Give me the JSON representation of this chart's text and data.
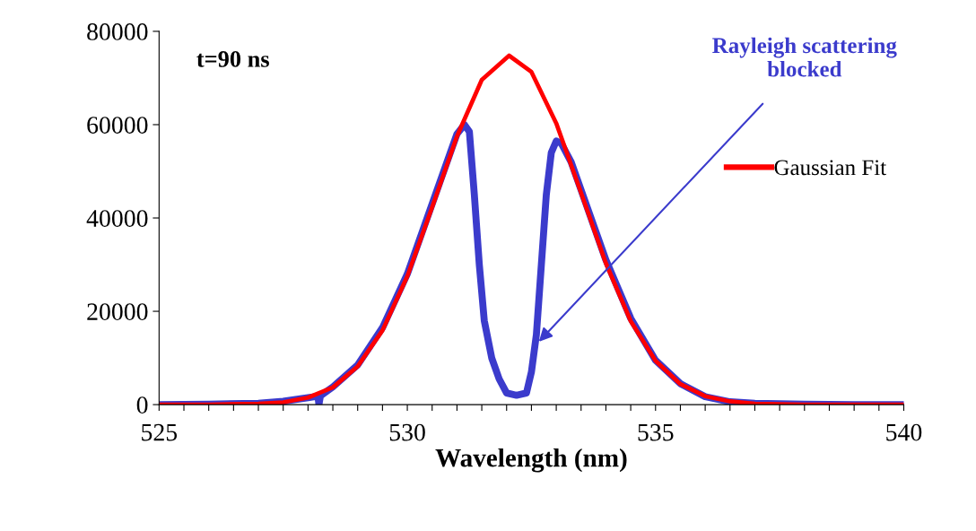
{
  "chart_data": {
    "type": "line",
    "xlabel": "Wavelength (nm)",
    "xlim": [
      525,
      540
    ],
    "ylim": [
      0,
      80000
    ],
    "xticks": [
      525,
      {
        "value": 525.5,
        "label": null
      },
      {
        "value": 526,
        "label": null
      },
      {
        "value": 526.5,
        "label": null
      },
      {
        "value": 527,
        "label": null
      },
      {
        "value": 527.5,
        "label": null
      },
      {
        "value": 528,
        "label": null
      },
      {
        "value": 528.5,
        "label": null
      },
      {
        "value": 529,
        "label": null
      },
      {
        "value": 529.5,
        "label": null
      },
      530,
      {
        "value": 530.5,
        "label": null
      },
      {
        "value": 531,
        "label": null
      },
      {
        "value": 531.5,
        "label": null
      },
      {
        "value": 532,
        "label": null
      },
      {
        "value": 532.5,
        "label": null
      },
      {
        "value": 533,
        "label": null
      },
      {
        "value": 533.5,
        "label": null
      },
      {
        "value": 534,
        "label": null
      },
      {
        "value": 534.5,
        "label": null
      },
      535,
      {
        "value": 535.5,
        "label": null
      },
      {
        "value": 536,
        "label": null
      },
      {
        "value": 536.5,
        "label": null
      },
      {
        "value": 537,
        "label": null
      },
      {
        "value": 537.5,
        "label": null
      },
      {
        "value": 538,
        "label": null
      },
      {
        "value": 538.5,
        "label": null
      },
      {
        "value": 539,
        "label": null
      },
      {
        "value": 539.5,
        "label": null
      },
      540
    ],
    "yticks": [
      0,
      20000,
      40000,
      60000,
      80000
    ],
    "grid": false,
    "legend": "right",
    "marker": "none",
    "line_style": "solid",
    "series": [
      {
        "color": "#3b3bcc",
        "x": [
          525,
          526,
          527,
          527.5,
          528,
          528.2,
          528.22,
          528.25,
          528.5,
          529,
          529.5,
          530,
          530.5,
          531,
          531.15,
          531.25,
          531.35,
          531.45,
          531.55,
          531.7,
          531.85,
          532.0,
          532.2,
          532.4,
          532.5,
          532.6,
          532.7,
          532.8,
          532.9,
          533.0,
          533.1,
          533.3,
          533.5,
          534,
          534.5,
          535,
          535.5,
          536,
          536.5,
          537,
          538,
          539,
          540
        ],
        "values": [
          0,
          100,
          300,
          700,
          1500,
          1800,
          0,
          1900,
          3800,
          8500,
          16500,
          28000,
          43000,
          58000,
          60000,
          58500,
          45000,
          30000,
          18000,
          10000,
          5500,
          2500,
          2000,
          2500,
          7000,
          15000,
          30000,
          45000,
          54000,
          56500,
          56000,
          52000,
          46000,
          31000,
          18500,
          9500,
          4500,
          1700,
          600,
          300,
          100,
          0,
          0
        ]
      },
      {
        "name": "Gaussian Fit",
        "color": "#ff0000",
        "x": [
          525,
          526,
          527,
          527.5,
          528,
          528.5,
          529,
          529.5,
          530,
          530.5,
          531,
          531.5,
          532.05,
          532.5,
          533,
          533.5,
          534,
          534.5,
          535,
          535.5,
          536,
          536.5,
          537,
          538,
          539,
          540
        ],
        "values": [
          0,
          0,
          200,
          500,
          1500,
          3700,
          8200,
          15900,
          27500,
          42300,
          57500,
          69600,
          74800,
          71300,
          60300,
          45400,
          30300,
          17900,
          9400,
          4400,
          1800,
          700,
          200,
          0,
          0,
          0
        ]
      }
    ],
    "annotations": [
      "t=90 ns",
      {
        "text": "Rayleigh scattering\nblocked",
        "x": 532.65,
        "y": 13500
      }
    ]
  }
}
